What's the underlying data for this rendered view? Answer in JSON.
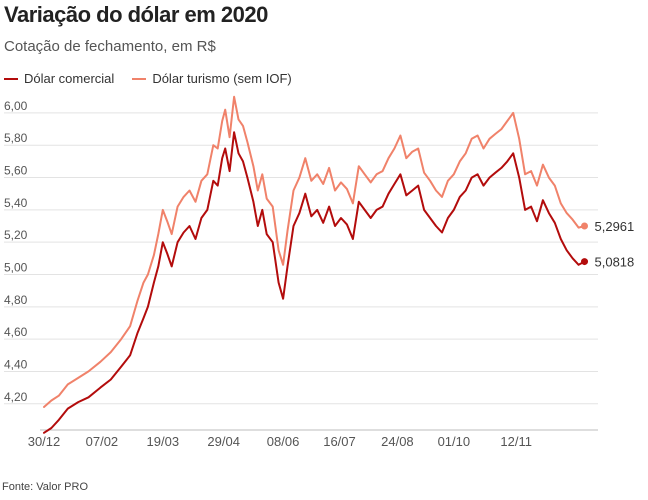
{
  "title": "Variação do dólar em 2020",
  "subtitle": "Cotação de fechamento, em R$",
  "source": "Fonte: Valor PRO",
  "colors": {
    "comercial": "#b30c0c",
    "turismo": "#f0826a",
    "grid": "#e3e3e3",
    "axis_text": "#555555"
  },
  "chart_data": {
    "type": "line",
    "title": "Variação do dólar em 2020",
    "subtitle": "Cotação de fechamento, em R$",
    "xlabel": "",
    "ylabel": "",
    "ylim": [
      4.05,
      6.08
    ],
    "yticks": [
      "6,00",
      "5,80",
      "5,60",
      "5,40",
      "5,20",
      "5,00",
      "4,80",
      "4,60",
      "4,40",
      "4,20"
    ],
    "ytick_values": [
      6.0,
      5.8,
      5.6,
      5.4,
      5.2,
      5.0,
      4.8,
      4.6,
      4.4,
      4.2
    ],
    "xticks": [
      "30/12",
      "07/02",
      "19/03",
      "29/04",
      "08/06",
      "16/07",
      "24/08",
      "01/10",
      "12/11"
    ],
    "xtick_days": [
      0,
      39,
      80,
      121,
      161,
      199,
      238,
      276,
      318
    ],
    "x_range": [
      0,
      365
    ],
    "grid": "horizontal",
    "legend": "top-left",
    "series": [
      {
        "name": "Dólar comercial",
        "key": "comercial",
        "end_label": "5,0818",
        "x": [
          0,
          5,
          10,
          16,
          23,
          30,
          38,
          45,
          52,
          58,
          63,
          67,
          70,
          74,
          77,
          80,
          83,
          86,
          90,
          94,
          98,
          102,
          106,
          110,
          114,
          117,
          120,
          122,
          125,
          128,
          131,
          134,
          137,
          141,
          144,
          147,
          150,
          154,
          158,
          161,
          164,
          168,
          172,
          176,
          180,
          184,
          188,
          192,
          196,
          200,
          204,
          208,
          212,
          216,
          220,
          224,
          228,
          232,
          236,
          240,
          244,
          248,
          252,
          256,
          260,
          264,
          268,
          272,
          276,
          280,
          284,
          288,
          292,
          296,
          300,
          304,
          308,
          312,
          316,
          320,
          324,
          328,
          332,
          336,
          340,
          344,
          348,
          352,
          356,
          360,
          364
        ],
        "y": [
          4.02,
          4.05,
          4.1,
          4.17,
          4.21,
          4.24,
          4.3,
          4.35,
          4.43,
          4.5,
          4.64,
          4.73,
          4.8,
          4.95,
          5.05,
          5.2,
          5.13,
          5.05,
          5.2,
          5.26,
          5.3,
          5.22,
          5.35,
          5.4,
          5.58,
          5.55,
          5.72,
          5.78,
          5.64,
          5.88,
          5.75,
          5.7,
          5.6,
          5.45,
          5.3,
          5.4,
          5.25,
          5.2,
          4.95,
          4.85,
          5.05,
          5.3,
          5.38,
          5.5,
          5.36,
          5.4,
          5.32,
          5.42,
          5.3,
          5.35,
          5.31,
          5.22,
          5.45,
          5.4,
          5.35,
          5.4,
          5.42,
          5.5,
          5.56,
          5.62,
          5.49,
          5.52,
          5.55,
          5.4,
          5.35,
          5.3,
          5.26,
          5.35,
          5.4,
          5.48,
          5.52,
          5.6,
          5.62,
          5.55,
          5.6,
          5.63,
          5.66,
          5.7,
          5.75,
          5.6,
          5.4,
          5.42,
          5.33,
          5.46,
          5.38,
          5.32,
          5.22,
          5.15,
          5.1,
          5.06,
          5.08
        ]
      },
      {
        "name": "Dólar turismo (sem IOF)",
        "key": "turismo",
        "end_label": "5,2961",
        "x": [
          0,
          5,
          10,
          16,
          23,
          30,
          38,
          45,
          52,
          58,
          63,
          67,
          70,
          74,
          77,
          80,
          83,
          86,
          90,
          94,
          98,
          102,
          106,
          110,
          114,
          117,
          120,
          122,
          125,
          128,
          131,
          134,
          137,
          141,
          144,
          147,
          150,
          154,
          158,
          161,
          164,
          168,
          172,
          176,
          180,
          184,
          188,
          192,
          196,
          200,
          204,
          208,
          212,
          216,
          220,
          224,
          228,
          232,
          236,
          240,
          244,
          248,
          252,
          256,
          260,
          264,
          268,
          272,
          276,
          280,
          284,
          288,
          292,
          296,
          300,
          304,
          308,
          312,
          316,
          320,
          324,
          328,
          332,
          336,
          340,
          344,
          348,
          352,
          356,
          360,
          364
        ],
        "y": [
          4.18,
          4.22,
          4.25,
          4.32,
          4.36,
          4.4,
          4.46,
          4.52,
          4.6,
          4.68,
          4.84,
          4.95,
          5.0,
          5.12,
          5.25,
          5.4,
          5.33,
          5.25,
          5.42,
          5.48,
          5.52,
          5.45,
          5.58,
          5.62,
          5.8,
          5.78,
          5.95,
          6.02,
          5.85,
          6.1,
          5.96,
          5.92,
          5.82,
          5.67,
          5.52,
          5.62,
          5.47,
          5.42,
          5.15,
          5.06,
          5.27,
          5.52,
          5.6,
          5.72,
          5.58,
          5.62,
          5.56,
          5.66,
          5.52,
          5.57,
          5.53,
          5.44,
          5.67,
          5.62,
          5.57,
          5.62,
          5.64,
          5.72,
          5.78,
          5.86,
          5.72,
          5.76,
          5.78,
          5.63,
          5.58,
          5.52,
          5.48,
          5.58,
          5.62,
          5.7,
          5.75,
          5.84,
          5.86,
          5.78,
          5.84,
          5.87,
          5.9,
          5.95,
          6.0,
          5.84,
          5.62,
          5.64,
          5.55,
          5.68,
          5.6,
          5.55,
          5.44,
          5.38,
          5.34,
          5.29,
          5.3
        ]
      }
    ]
  }
}
